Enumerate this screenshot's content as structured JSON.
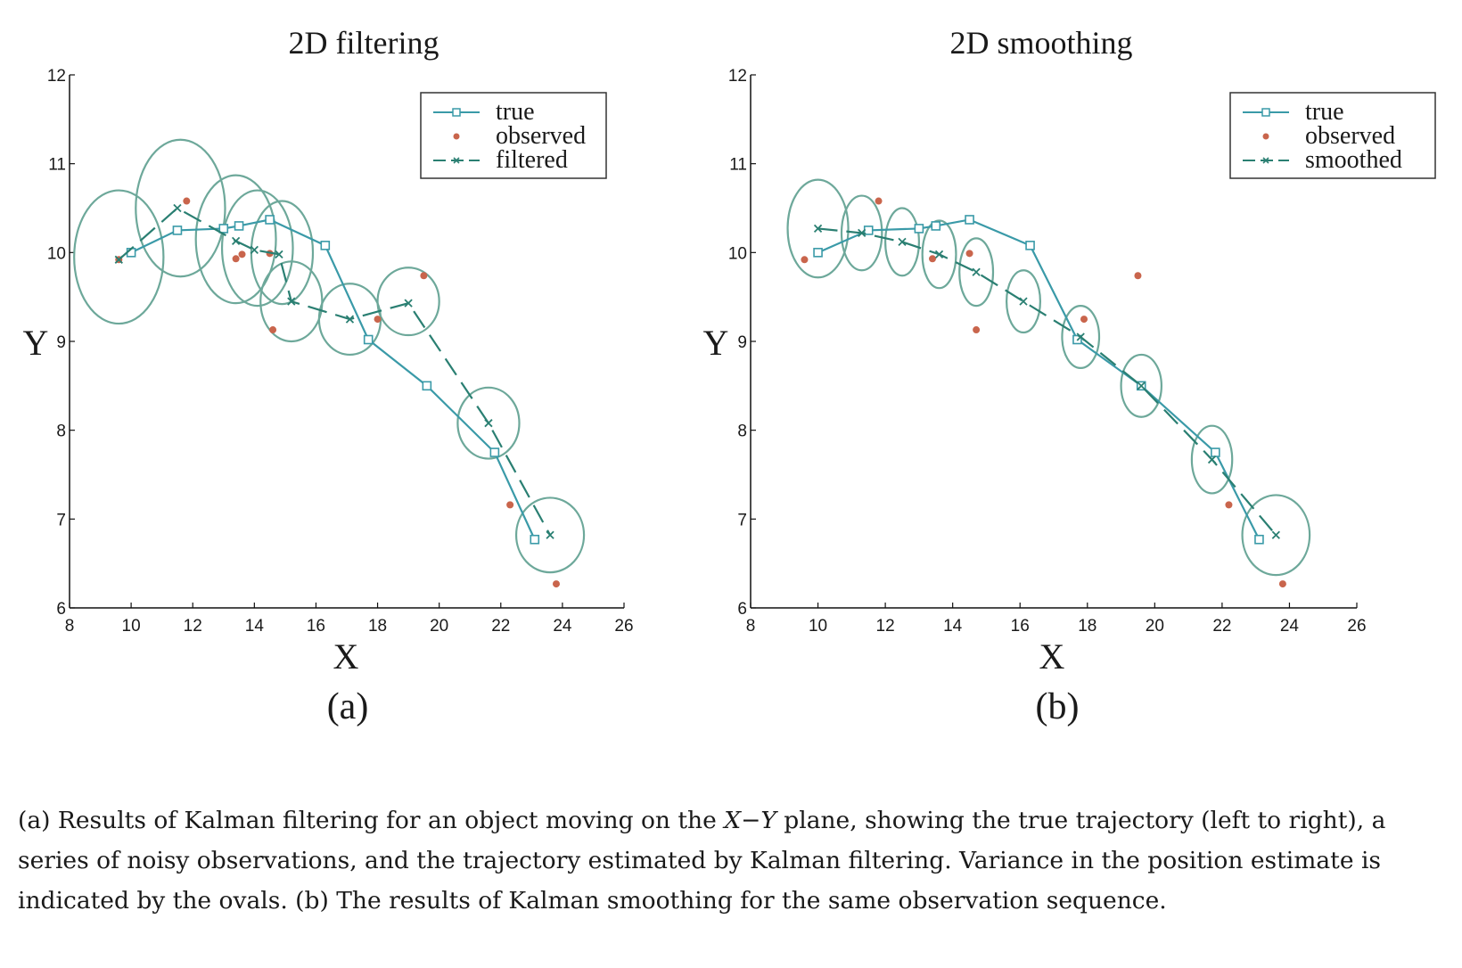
{
  "chart_data": [
    {
      "type": "line",
      "title": "2D filtering",
      "panel_label": "(a)",
      "xlabel": "X",
      "ylabel": "Y",
      "xlim": [
        8,
        26
      ],
      "ylim": [
        6,
        12
      ],
      "xticks": [
        8,
        10,
        12,
        14,
        16,
        18,
        20,
        22,
        24,
        26
      ],
      "yticks": [
        6,
        7,
        8,
        9,
        10,
        11,
        12
      ],
      "legend_position": "top-right",
      "series": [
        {
          "name": "true",
          "style": "solid-square",
          "color": "#3a9aa8",
          "points": [
            [
              10,
              10
            ],
            [
              11.5,
              10.25
            ],
            [
              13,
              10.27
            ],
            [
              13.5,
              10.3
            ],
            [
              14.5,
              10.37
            ],
            [
              16.3,
              10.08
            ],
            [
              17.7,
              9.02
            ],
            [
              19.6,
              8.5
            ],
            [
              21.8,
              7.75
            ],
            [
              23.1,
              6.77
            ]
          ]
        },
        {
          "name": "observed",
          "style": "dot",
          "color": "#c9654c",
          "points": [
            [
              9.6,
              9.92
            ],
            [
              11.8,
              10.58
            ],
            [
              13.4,
              9.93
            ],
            [
              13.6,
              9.98
            ],
            [
              14.5,
              9.99
            ],
            [
              14.6,
              9.13
            ],
            [
              18,
              9.25
            ],
            [
              19.5,
              9.74
            ],
            [
              22.3,
              7.16
            ],
            [
              23.8,
              6.27
            ]
          ]
        },
        {
          "name": "filtered",
          "style": "dashed-x",
          "color": "#2a7f72",
          "points": [
            [
              9.6,
              9.92
            ],
            [
              11.5,
              10.5
            ],
            [
              13.4,
              10.13
            ],
            [
              14,
              10.03
            ],
            [
              14.8,
              9.98
            ],
            [
              15.2,
              9.45
            ],
            [
              17.1,
              9.25
            ],
            [
              19,
              9.43
            ],
            [
              21.6,
              8.08
            ],
            [
              23.6,
              6.82
            ]
          ]
        }
      ],
      "ovals": [
        {
          "cx": 9.6,
          "cy": 9.95,
          "rx": 1.45,
          "ry": 0.75
        },
        {
          "cx": 11.6,
          "cy": 10.5,
          "rx": 1.45,
          "ry": 0.77
        },
        {
          "cx": 13.4,
          "cy": 10.15,
          "rx": 1.3,
          "ry": 0.72
        },
        {
          "cx": 14.1,
          "cy": 10.05,
          "rx": 1.15,
          "ry": 0.65
        },
        {
          "cx": 14.9,
          "cy": 10.0,
          "rx": 1.0,
          "ry": 0.58
        },
        {
          "cx": 15.2,
          "cy": 9.45,
          "rx": 1.0,
          "ry": 0.45
        },
        {
          "cx": 17.1,
          "cy": 9.25,
          "rx": 1.0,
          "ry": 0.4
        },
        {
          "cx": 19,
          "cy": 9.45,
          "rx": 1.0,
          "ry": 0.38
        },
        {
          "cx": 21.6,
          "cy": 8.08,
          "rx": 1.0,
          "ry": 0.4
        },
        {
          "cx": 23.6,
          "cy": 6.82,
          "rx": 1.1,
          "ry": 0.42
        }
      ]
    },
    {
      "type": "line",
      "title": "2D smoothing",
      "panel_label": "(b)",
      "xlabel": "X",
      "ylabel": "Y",
      "xlim": [
        8,
        26
      ],
      "ylim": [
        6,
        12
      ],
      "xticks": [
        8,
        10,
        12,
        14,
        16,
        18,
        20,
        22,
        24,
        26
      ],
      "yticks": [
        6,
        7,
        8,
        9,
        10,
        11,
        12
      ],
      "legend_position": "top-right",
      "series": [
        {
          "name": "true",
          "style": "solid-square",
          "color": "#3a9aa8",
          "points": [
            [
              10,
              10
            ],
            [
              11.5,
              10.25
            ],
            [
              13,
              10.27
            ],
            [
              13.5,
              10.3
            ],
            [
              14.5,
              10.37
            ],
            [
              16.3,
              10.08
            ],
            [
              17.7,
              9.02
            ],
            [
              19.6,
              8.5
            ],
            [
              21.8,
              7.75
            ],
            [
              23.1,
              6.77
            ]
          ]
        },
        {
          "name": "observed",
          "style": "dot",
          "color": "#c9654c",
          "points": [
            [
              9.6,
              9.92
            ],
            [
              11.8,
              10.58
            ],
            [
              13.4,
              9.93
            ],
            [
              14.5,
              9.99
            ],
            [
              14.7,
              9.13
            ],
            [
              17.9,
              9.25
            ],
            [
              19.5,
              9.74
            ],
            [
              22.2,
              7.16
            ],
            [
              23.8,
              6.27
            ]
          ]
        },
        {
          "name": "smoothed",
          "style": "dashed-x",
          "color": "#2a7f72",
          "points": [
            [
              10,
              10.27
            ],
            [
              11.3,
              10.22
            ],
            [
              12.5,
              10.12
            ],
            [
              13.6,
              9.98
            ],
            [
              14.7,
              9.78
            ],
            [
              16.1,
              9.45
            ],
            [
              17.8,
              9.05
            ],
            [
              19.6,
              8.5
            ],
            [
              21.7,
              7.67
            ],
            [
              23.6,
              6.82
            ]
          ]
        }
      ],
      "ovals": [
        {
          "cx": 10,
          "cy": 10.27,
          "rx": 0.9,
          "ry": 0.55
        },
        {
          "cx": 11.3,
          "cy": 10.22,
          "rx": 0.6,
          "ry": 0.42
        },
        {
          "cx": 12.5,
          "cy": 10.12,
          "rx": 0.5,
          "ry": 0.38
        },
        {
          "cx": 13.6,
          "cy": 9.98,
          "rx": 0.5,
          "ry": 0.38
        },
        {
          "cx": 14.7,
          "cy": 9.78,
          "rx": 0.5,
          "ry": 0.38
        },
        {
          "cx": 16.1,
          "cy": 9.45,
          "rx": 0.5,
          "ry": 0.35
        },
        {
          "cx": 17.8,
          "cy": 9.05,
          "rx": 0.55,
          "ry": 0.35
        },
        {
          "cx": 19.6,
          "cy": 8.5,
          "rx": 0.6,
          "ry": 0.35
        },
        {
          "cx": 21.7,
          "cy": 7.67,
          "rx": 0.6,
          "ry": 0.38
        },
        {
          "cx": 23.6,
          "cy": 6.82,
          "rx": 1.0,
          "ry": 0.45
        }
      ]
    }
  ],
  "caption": {
    "p1": "(a) Results of Kalman filtering for an object moving on the ",
    "plane_x": "X",
    "dash": "−",
    "plane_y": "Y",
    "p2": " plane, showing the true trajectory (left to right), a series of noisy observations, and the trajectory estimated by Kalman filtering. Variance in the position estimate is indicated by the ovals. (b) The results of Kalman smoothing for the same observation sequence."
  }
}
